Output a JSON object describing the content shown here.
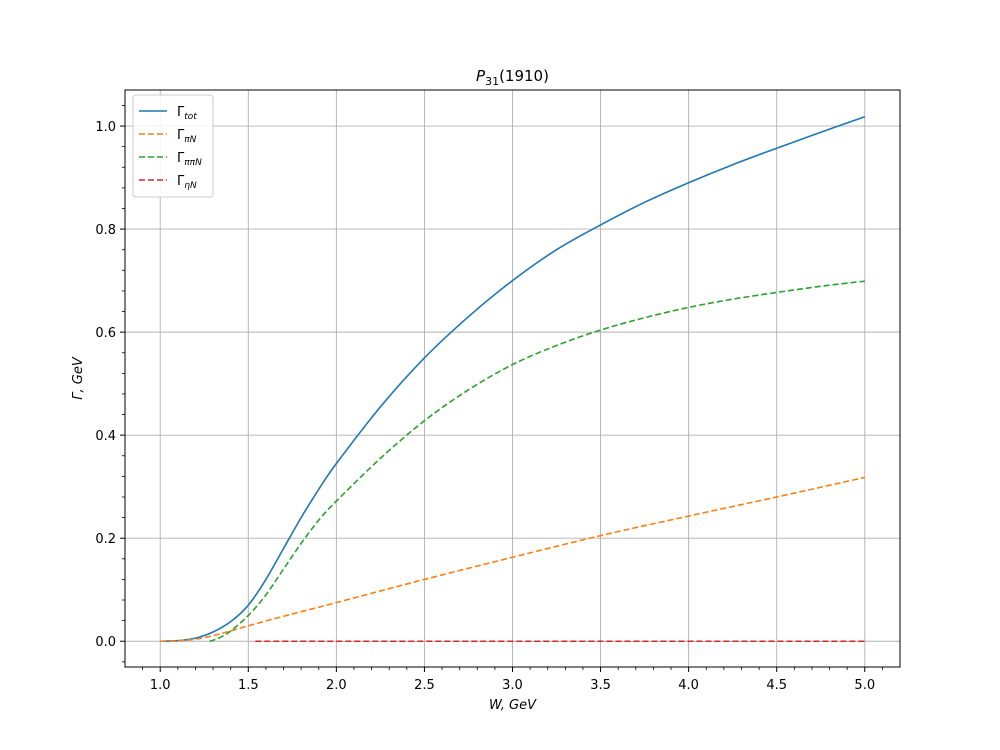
{
  "chart_data": {
    "type": "line",
    "title": "P_31(1910)",
    "title_main": "P",
    "title_sub": "31",
    "title_rest": "(1910)",
    "xlabel": "W, GeV",
    "ylabel": "Γ,  GeV",
    "xlim": [
      0.8,
      5.2
    ],
    "ylim": [
      -0.05,
      1.07
    ],
    "xticks": [
      1.0,
      1.5,
      2.0,
      2.5,
      3.0,
      3.5,
      4.0,
      4.5,
      5.0
    ],
    "xtick_labels": [
      "1.0",
      "1.5",
      "2.0",
      "2.5",
      "3.0",
      "3.5",
      "4.0",
      "4.5",
      "5.0"
    ],
    "yticks": [
      0.0,
      0.2,
      0.4,
      0.6,
      0.8,
      1.0
    ],
    "ytick_labels": [
      "0.0",
      "0.2",
      "0.4",
      "0.6",
      "0.8",
      "1.0"
    ],
    "grid": true,
    "legend_position": "top-left",
    "series": [
      {
        "name": "Γ_tot",
        "name_main": "Γ",
        "name_sub": "tot",
        "color": "#1f77b4",
        "dash": "solid",
        "x": [
          1.0,
          1.1,
          1.2,
          1.3,
          1.4,
          1.5,
          1.6,
          1.7,
          1.8,
          1.9,
          2.0,
          2.25,
          2.5,
          2.75,
          3.0,
          3.25,
          3.5,
          3.75,
          4.0,
          4.25,
          4.5,
          4.75,
          5.0
        ],
        "y": [
          0.0,
          0.001,
          0.006,
          0.018,
          0.038,
          0.07,
          0.12,
          0.18,
          0.24,
          0.295,
          0.345,
          0.455,
          0.55,
          0.63,
          0.7,
          0.76,
          0.808,
          0.852,
          0.89,
          0.925,
          0.957,
          0.988,
          1.018
        ]
      },
      {
        "name": "Γ_πN",
        "name_main": "Γ",
        "name_sub": "πN",
        "color": "#ff7f0e",
        "dash": "dashed",
        "x": [
          1.0,
          1.1,
          1.2,
          1.3,
          1.4,
          1.5,
          1.75,
          2.0,
          2.5,
          3.0,
          3.5,
          4.0,
          4.5,
          5.0
        ],
        "y": [
          0.0,
          0.001,
          0.004,
          0.011,
          0.02,
          0.03,
          0.053,
          0.075,
          0.12,
          0.163,
          0.205,
          0.243,
          0.28,
          0.318
        ]
      },
      {
        "name": "Γ_ππN",
        "name_main": "Γ",
        "name_sub": "ππN",
        "color": "#2ca02c",
        "dash": "dashed",
        "x": [
          1.28,
          1.3,
          1.35,
          1.4,
          1.5,
          1.6,
          1.7,
          1.8,
          1.9,
          2.0,
          2.25,
          2.5,
          2.75,
          3.0,
          3.25,
          3.5,
          3.75,
          4.0,
          4.25,
          4.5,
          4.75,
          5.0
        ],
        "y": [
          0.0,
          0.002,
          0.009,
          0.02,
          0.05,
          0.09,
          0.14,
          0.19,
          0.235,
          0.272,
          0.355,
          0.428,
          0.488,
          0.537,
          0.574,
          0.604,
          0.628,
          0.648,
          0.664,
          0.677,
          0.689,
          0.699
        ]
      },
      {
        "name": "Γ_ηN",
        "name_main": "Γ",
        "name_sub": "ηN",
        "color": "#d62728",
        "dash": "dashed",
        "x": [
          1.54,
          5.0
        ],
        "y": [
          0.0,
          0.0
        ]
      }
    ]
  }
}
